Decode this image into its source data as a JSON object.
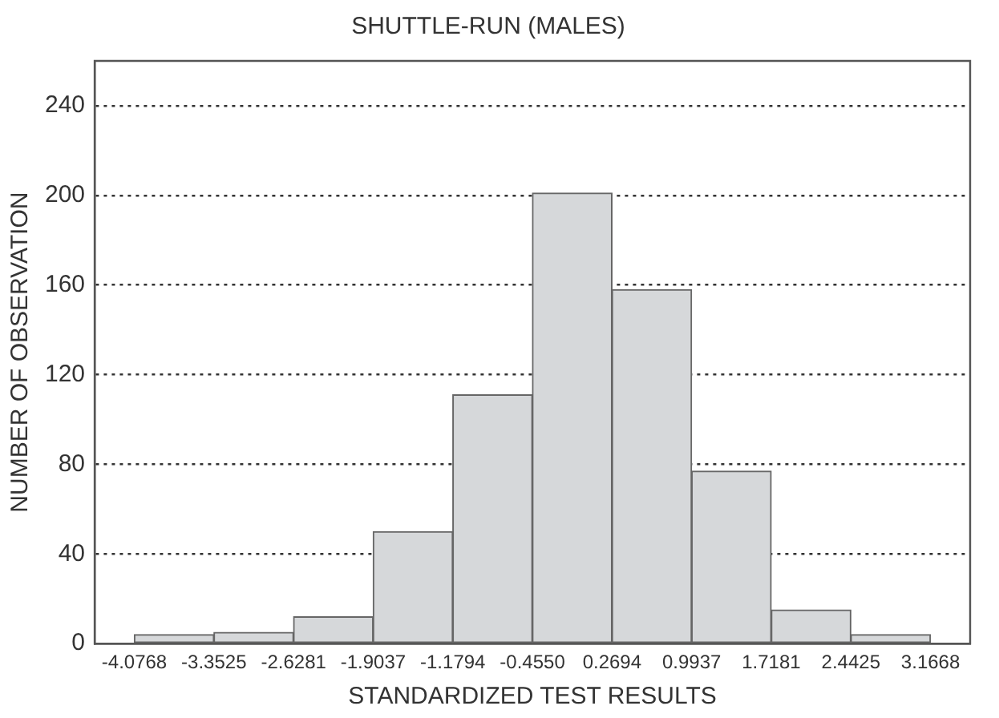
{
  "chart_data": {
    "type": "histogram",
    "title": "SHUTTLE-RUN (MALES)",
    "xlabel": "STANDARDIZED TEST RESULTS",
    "ylabel": "NUMBER OF OBSERVATION",
    "bins": [
      -4.0768,
      -3.3525,
      -2.6281,
      -1.9037,
      -1.1794,
      -0.455,
      0.2694,
      0.9937,
      1.7181,
      2.4425,
      3.1668
    ],
    "values": [
      4,
      5,
      12,
      50,
      111,
      201,
      158,
      77,
      15,
      4
    ],
    "color": "#d6d8da",
    "xlim": [
      -4.4375,
      3.5275
    ],
    "xticks": [
      -4.0768,
      -3.3525,
      -2.6281,
      -1.9037,
      -1.1794,
      {
        "value": -0.455,
        "label": "-0.4550"
      },
      0.2694,
      0.9937,
      1.7181,
      2.4425,
      3.1668
    ],
    "ylim": [
      0,
      260
    ],
    "yticks": [
      0,
      40,
      80,
      120,
      160,
      200,
      240
    ],
    "grid": "y",
    "legend": false
  }
}
